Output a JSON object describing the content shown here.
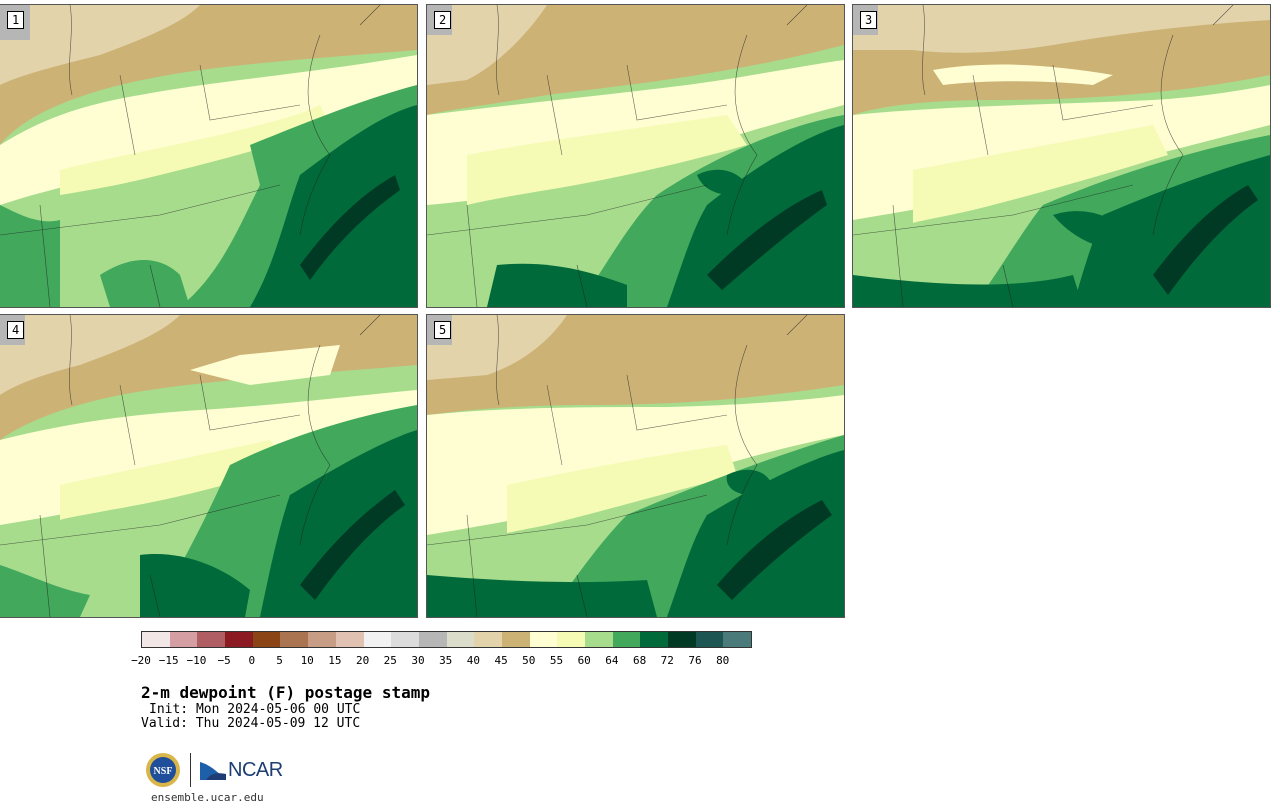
{
  "panels": [
    {
      "label": "1"
    },
    {
      "label": "2"
    },
    {
      "label": "3"
    },
    {
      "label": "4"
    },
    {
      "label": "5"
    }
  ],
  "colorbar": {
    "colors": [
      "#f3e6e6",
      "#d59ea2",
      "#b05e63",
      "#8c1a22",
      "#8a4416",
      "#ab7451",
      "#c89d85",
      "#e1c2b2",
      "#f2f2f2",
      "#dcdcdc",
      "#b6b6b6",
      "#dcdccb",
      "#e3d3ab",
      "#cdb276",
      "#fefed2",
      "#f5fab4",
      "#a6dc8c",
      "#41a85c",
      "#006a3a",
      "#003a25",
      "#1c5551",
      "#4a7a7a"
    ],
    "ticks": [
      "−20",
      "−15",
      "−10",
      "−5",
      "0",
      "5",
      "10",
      "15",
      "20",
      "25",
      "30",
      "35",
      "40",
      "45",
      "50",
      "55",
      "60",
      "64",
      "68",
      "72",
      "76",
      "80"
    ]
  },
  "title": "2-m dewpoint (F) postage stamp",
  "init": "Init: Mon 2024-05-06 00 UTC",
  "valid": "Valid: Thu 2024-05-09 12 UTC",
  "logos": {
    "nsf_text": "NSF",
    "ncar_text": "NCAR"
  },
  "site": "ensemble.ucar.edu"
}
